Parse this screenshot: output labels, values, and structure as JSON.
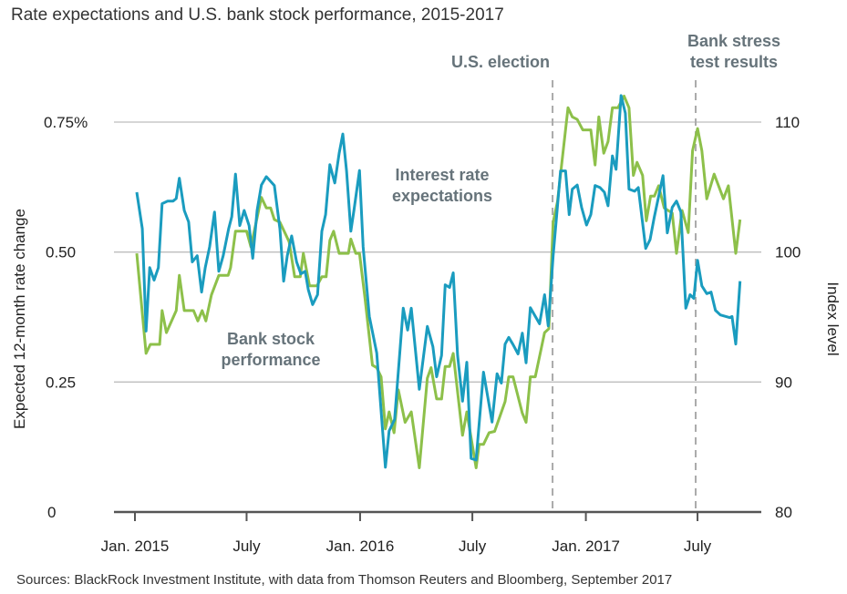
{
  "chart_data": {
    "type": "line",
    "title": "Rate expectations and U.S. bank stock performance, 2015-2017",
    "source": "Sources: BlackRock Investment Institute, with data from Thomson Reuters and Bloomberg, September 2017",
    "ylabel_left": "Expected 12-month rate change",
    "ylabel_right": "Index level",
    "ylim_left": [
      0,
      0.75
    ],
    "ylim_right": [
      80,
      110
    ],
    "yticks_left": [
      "0",
      "0.25",
      "0.50",
      "0.75%"
    ],
    "yticks_right": [
      "80",
      "90",
      "100",
      "110"
    ],
    "xticks": [
      {
        "label": "Jan. 2015",
        "date": "2015-01-01"
      },
      {
        "label": "July",
        "date": "2015-07-01"
      },
      {
        "label": "Jan. 2016",
        "date": "2016-01-01"
      },
      {
        "label": "July",
        "date": "2016-07-01"
      },
      {
        "label": "Jan. 2017",
        "date": "2017-01-01"
      },
      {
        "label": "July",
        "date": "2017-07-01"
      }
    ],
    "grid": "horizontal",
    "events": [
      {
        "label": [
          "U.S. election"
        ],
        "date": "2016-11-08"
      },
      {
        "label": [
          "Bank stress",
          "test results"
        ],
        "date": "2017-06-28"
      }
    ],
    "colors": {
      "rate": "#1a9cbf",
      "bank": "#8dc04a",
      "event": "#6b767c"
    },
    "series": [
      {
        "name": "Interest rate expectations",
        "label_lines": [
          "Interest rate",
          "expectations"
        ],
        "axis": "left",
        "points": [
          [
            "2015-01-04",
            0.615
          ],
          [
            "2015-01-13",
            0.545
          ],
          [
            "2015-01-19",
            0.348
          ],
          [
            "2015-01-25",
            0.47
          ],
          [
            "2015-02-01",
            0.446
          ],
          [
            "2015-02-08",
            0.47
          ],
          [
            "2015-02-14",
            0.593
          ],
          [
            "2015-02-23",
            0.598
          ],
          [
            "2015-03-04",
            0.598
          ],
          [
            "2015-03-09",
            0.603
          ],
          [
            "2015-03-14",
            0.642
          ],
          [
            "2015-03-22",
            0.58
          ],
          [
            "2015-03-29",
            0.558
          ],
          [
            "2015-04-04",
            0.481
          ],
          [
            "2015-04-12",
            0.493
          ],
          [
            "2015-04-19",
            0.423
          ],
          [
            "2015-04-25",
            0.47
          ],
          [
            "2015-05-02",
            0.51
          ],
          [
            "2015-05-10",
            0.577
          ],
          [
            "2015-05-17",
            0.463
          ],
          [
            "2015-05-24",
            0.493
          ],
          [
            "2015-06-02",
            0.545
          ],
          [
            "2015-06-07",
            0.568
          ],
          [
            "2015-06-13",
            0.65
          ],
          [
            "2015-06-20",
            0.551
          ],
          [
            "2015-06-27",
            0.58
          ],
          [
            "2015-07-05",
            0.551
          ],
          [
            "2015-07-11",
            0.488
          ],
          [
            "2015-07-18",
            0.58
          ],
          [
            "2015-07-25",
            0.629
          ],
          [
            "2015-08-02",
            0.645
          ],
          [
            "2015-08-15",
            0.628
          ],
          [
            "2015-08-24",
            0.545
          ],
          [
            "2015-08-30",
            0.444
          ],
          [
            "2015-09-05",
            0.493
          ],
          [
            "2015-09-12",
            0.531
          ],
          [
            "2015-09-20",
            0.481
          ],
          [
            "2015-09-27",
            0.458
          ],
          [
            "2015-10-04",
            0.463
          ],
          [
            "2015-10-09",
            0.428
          ],
          [
            "2015-10-16",
            0.399
          ],
          [
            "2015-10-24",
            0.418
          ],
          [
            "2015-10-31",
            0.54
          ],
          [
            "2015-11-06",
            0.572
          ],
          [
            "2015-11-13",
            0.668
          ],
          [
            "2015-11-21",
            0.633
          ],
          [
            "2015-11-28",
            0.69
          ],
          [
            "2015-12-04",
            0.727
          ],
          [
            "2015-12-10",
            0.656
          ],
          [
            "2015-12-17",
            0.54
          ],
          [
            "2015-12-22",
            0.58
          ],
          [
            "2015-12-31",
            0.657
          ],
          [
            "2016-01-06",
            0.51
          ],
          [
            "2016-01-16",
            0.376
          ],
          [
            "2016-01-28",
            0.306
          ],
          [
            "2016-02-11",
            0.086
          ],
          [
            "2016-02-17",
            0.156
          ],
          [
            "2016-02-26",
            0.178
          ],
          [
            "2016-03-11",
            0.392
          ],
          [
            "2016-03-18",
            0.35
          ],
          [
            "2016-03-24",
            0.392
          ],
          [
            "2016-04-06",
            0.236
          ],
          [
            "2016-04-19",
            0.357
          ],
          [
            "2016-04-28",
            0.318
          ],
          [
            "2016-05-04",
            0.26
          ],
          [
            "2016-05-12",
            0.301
          ],
          [
            "2016-05-18",
            0.437
          ],
          [
            "2016-05-25",
            0.432
          ],
          [
            "2016-05-31",
            0.46
          ],
          [
            "2016-06-07",
            0.301
          ],
          [
            "2016-06-15",
            0.213
          ],
          [
            "2016-06-22",
            0.288
          ],
          [
            "2016-06-29",
            0.103
          ],
          [
            "2016-07-07",
            0.1
          ],
          [
            "2016-07-19",
            0.269
          ],
          [
            "2016-08-02",
            0.173
          ],
          [
            "2016-08-10",
            0.266
          ],
          [
            "2016-08-17",
            0.248
          ],
          [
            "2016-08-23",
            0.323
          ],
          [
            "2016-08-29",
            0.336
          ],
          [
            "2016-09-05",
            0.322
          ],
          [
            "2016-09-13",
            0.304
          ],
          [
            "2016-09-20",
            0.344
          ],
          [
            "2016-09-26",
            0.287
          ],
          [
            "2016-10-03",
            0.393
          ],
          [
            "2016-10-18",
            0.362
          ],
          [
            "2016-10-26",
            0.418
          ],
          [
            "2016-11-01",
            0.358
          ],
          [
            "2016-11-09",
            0.493
          ],
          [
            "2016-11-21",
            0.656
          ],
          [
            "2016-11-29",
            0.656
          ],
          [
            "2016-12-05",
            0.572
          ],
          [
            "2016-12-10",
            0.621
          ],
          [
            "2016-12-18",
            0.629
          ],
          [
            "2016-12-25",
            0.586
          ],
          [
            "2017-01-02",
            0.552
          ],
          [
            "2017-01-09",
            0.572
          ],
          [
            "2017-01-16",
            0.628
          ],
          [
            "2017-01-24",
            0.624
          ],
          [
            "2017-01-31",
            0.615
          ],
          [
            "2017-02-06",
            0.589
          ],
          [
            "2017-02-13",
            0.685
          ],
          [
            "2017-02-19",
            0.659
          ],
          [
            "2017-02-27",
            0.801
          ],
          [
            "2017-03-06",
            0.767
          ],
          [
            "2017-03-12",
            0.621
          ],
          [
            "2017-03-21",
            0.617
          ],
          [
            "2017-03-27",
            0.624
          ],
          [
            "2017-04-08",
            0.507
          ],
          [
            "2017-04-15",
            0.524
          ],
          [
            "2017-04-22",
            0.568
          ],
          [
            "2017-05-06",
            0.647
          ],
          [
            "2017-05-13",
            0.537
          ],
          [
            "2017-05-21",
            0.586
          ],
          [
            "2017-05-28",
            0.598
          ],
          [
            "2017-06-04",
            0.577
          ],
          [
            "2017-06-12",
            0.392
          ],
          [
            "2017-06-19",
            0.418
          ],
          [
            "2017-06-25",
            0.411
          ],
          [
            "2017-07-01",
            0.484
          ],
          [
            "2017-07-08",
            0.435
          ],
          [
            "2017-07-16",
            0.42
          ],
          [
            "2017-07-23",
            0.423
          ],
          [
            "2017-07-30",
            0.388
          ],
          [
            "2017-08-07",
            0.379
          ],
          [
            "2017-08-22",
            0.374
          ],
          [
            "2017-08-26",
            0.376
          ],
          [
            "2017-09-01",
            0.323
          ],
          [
            "2017-09-08",
            0.444
          ]
        ]
      },
      {
        "name": "Bank stock performance",
        "label_lines": [
          "Bank stock",
          "performance"
        ],
        "axis": "right",
        "points": [
          [
            "2015-01-04",
            99.9
          ],
          [
            "2015-01-19",
            92.2
          ],
          [
            "2015-01-26",
            92.9
          ],
          [
            "2015-02-10",
            92.9
          ],
          [
            "2015-02-14",
            95.5
          ],
          [
            "2015-02-21",
            93.8
          ],
          [
            "2015-03-09",
            95.5
          ],
          [
            "2015-03-14",
            98.2
          ],
          [
            "2015-03-22",
            95.5
          ],
          [
            "2015-04-06",
            95.5
          ],
          [
            "2015-04-13",
            94.7
          ],
          [
            "2015-04-20",
            95.5
          ],
          [
            "2015-04-26",
            94.7
          ],
          [
            "2015-05-05",
            96.7
          ],
          [
            "2015-05-17",
            98.2
          ],
          [
            "2015-06-01",
            98.2
          ],
          [
            "2015-06-05",
            98.8
          ],
          [
            "2015-06-13",
            101.6
          ],
          [
            "2015-07-01",
            101.6
          ],
          [
            "2015-07-08",
            100.4
          ],
          [
            "2015-07-25",
            104.2
          ],
          [
            "2015-08-02",
            103.4
          ],
          [
            "2015-08-09",
            103.4
          ],
          [
            "2015-08-15",
            102.5
          ],
          [
            "2015-08-24",
            102.3
          ],
          [
            "2015-09-08",
            100.8
          ],
          [
            "2015-09-17",
            98.1
          ],
          [
            "2015-09-26",
            98.1
          ],
          [
            "2015-10-01",
            99.9
          ],
          [
            "2015-10-11",
            97.4
          ],
          [
            "2015-10-23",
            97.4
          ],
          [
            "2015-10-31",
            98.1
          ],
          [
            "2015-11-07",
            98.1
          ],
          [
            "2015-11-13",
            100.9
          ],
          [
            "2015-11-19",
            101.6
          ],
          [
            "2015-11-28",
            99.9
          ],
          [
            "2015-12-13",
            99.9
          ],
          [
            "2015-12-17",
            101.0
          ],
          [
            "2015-12-25",
            99.9
          ],
          [
            "2015-12-31",
            99.9
          ],
          [
            "2016-01-09",
            96.4
          ],
          [
            "2016-01-21",
            91.3
          ],
          [
            "2016-01-28",
            91.1
          ],
          [
            "2016-02-04",
            90.4
          ],
          [
            "2016-02-11",
            86.4
          ],
          [
            "2016-02-17",
            87.7
          ],
          [
            "2016-02-25",
            86.1
          ],
          [
            "2016-03-03",
            89.4
          ],
          [
            "2016-03-14",
            86.9
          ],
          [
            "2016-03-24",
            87.7
          ],
          [
            "2016-04-06",
            83.4
          ],
          [
            "2016-04-19",
            90.3
          ],
          [
            "2016-04-25",
            91.1
          ],
          [
            "2016-05-04",
            88.7
          ],
          [
            "2016-05-12",
            88.7
          ],
          [
            "2016-05-18",
            91.2
          ],
          [
            "2016-05-25",
            91.2
          ],
          [
            "2016-05-31",
            92.2
          ],
          [
            "2016-06-15",
            85.9
          ],
          [
            "2016-06-22",
            87.7
          ],
          [
            "2016-07-07",
            83.4
          ],
          [
            "2016-07-12",
            85.2
          ],
          [
            "2016-07-19",
            85.2
          ],
          [
            "2016-07-28",
            86.1
          ],
          [
            "2016-08-06",
            86.2
          ],
          [
            "2016-08-23",
            88.5
          ],
          [
            "2016-08-29",
            90.4
          ],
          [
            "2016-09-05",
            90.4
          ],
          [
            "2016-09-20",
            87.6
          ],
          [
            "2016-09-26",
            86.9
          ],
          [
            "2016-10-03",
            90.4
          ],
          [
            "2016-10-11",
            90.4
          ],
          [
            "2016-10-26",
            93.8
          ],
          [
            "2016-11-02",
            94.1
          ],
          [
            "2016-11-09",
            102.3
          ],
          [
            "2016-11-16",
            103.9
          ],
          [
            "2016-12-03",
            111.1
          ],
          [
            "2016-12-10",
            110.4
          ],
          [
            "2016-12-18",
            110.2
          ],
          [
            "2016-12-27",
            109.4
          ],
          [
            "2017-01-09",
            109.4
          ],
          [
            "2017-01-16",
            106.7
          ],
          [
            "2017-01-22",
            110.4
          ],
          [
            "2017-01-30",
            107.6
          ],
          [
            "2017-02-06",
            108.5
          ],
          [
            "2017-02-13",
            111.1
          ],
          [
            "2017-02-22",
            111.1
          ],
          [
            "2017-03-04",
            112.0
          ],
          [
            "2017-03-12",
            111.1
          ],
          [
            "2017-03-19",
            105.9
          ],
          [
            "2017-03-25",
            106.9
          ],
          [
            "2017-04-03",
            105.9
          ],
          [
            "2017-04-09",
            102.4
          ],
          [
            "2017-04-16",
            104.3
          ],
          [
            "2017-04-22",
            104.3
          ],
          [
            "2017-04-29",
            105.1
          ],
          [
            "2017-05-08",
            103.4
          ],
          [
            "2017-05-21",
            103.0
          ],
          [
            "2017-05-28",
            99.9
          ],
          [
            "2017-06-06",
            103.2
          ],
          [
            "2017-06-16",
            101.5
          ],
          [
            "2017-06-23",
            107.8
          ],
          [
            "2017-07-01",
            109.5
          ],
          [
            "2017-07-08",
            107.8
          ],
          [
            "2017-07-16",
            104.1
          ],
          [
            "2017-07-28",
            106.0
          ],
          [
            "2017-08-12",
            104.1
          ],
          [
            "2017-08-20",
            105.1
          ],
          [
            "2017-09-01",
            99.9
          ],
          [
            "2017-09-08",
            102.5
          ]
        ]
      }
    ]
  }
}
